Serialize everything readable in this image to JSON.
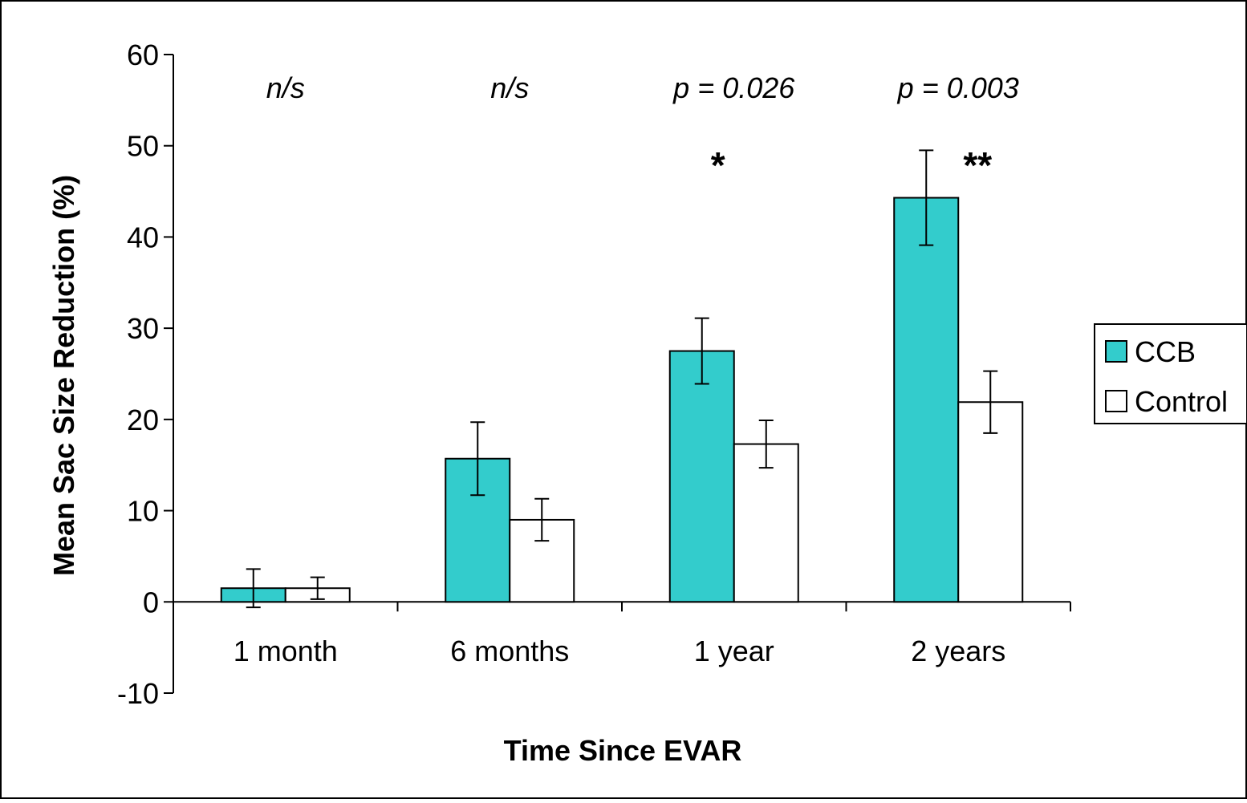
{
  "chart_data": {
    "type": "bar",
    "xlabel": "Time Since EVAR",
    "ylabel": "Mean Sac Size Reduction (%)",
    "ylim": [
      -10,
      60
    ],
    "yticks": [
      -10,
      0,
      10,
      20,
      30,
      40,
      50,
      60
    ],
    "ytick_labels": [
      "-10",
      "0",
      "10",
      "20",
      "30",
      "40",
      "50",
      "60"
    ],
    "categories": [
      "1 month",
      "6 months",
      "1 year",
      "2 years"
    ],
    "series": [
      {
        "name": "CCB",
        "color": "#33CCCC",
        "values": [
          1.5,
          15.7,
          27.5,
          44.3
        ],
        "error": [
          2.1,
          4.0,
          3.6,
          5.2
        ]
      },
      {
        "name": "Control",
        "color": "#FFFFFF",
        "values": [
          1.5,
          9.0,
          17.3,
          21.9
        ],
        "error": [
          1.2,
          2.3,
          2.6,
          3.4
        ]
      }
    ],
    "p_values": [
      "n/s",
      "n/s",
      "p = 0.026",
      "p = 0.003"
    ],
    "significance": [
      "",
      "",
      "*",
      "**"
    ],
    "legend": {
      "position": "right",
      "entries": [
        "CCB",
        "Control"
      ]
    },
    "grid": false
  }
}
